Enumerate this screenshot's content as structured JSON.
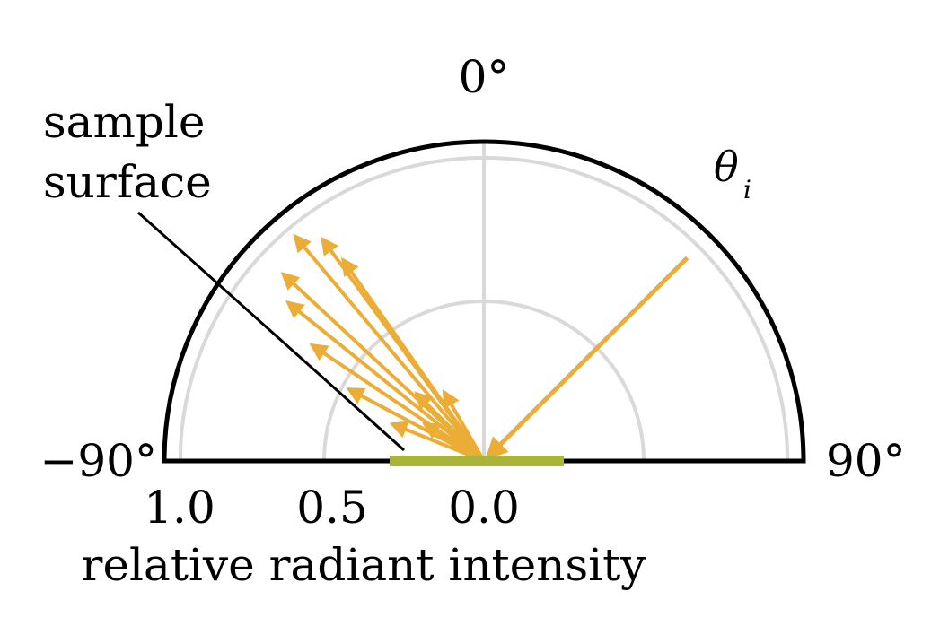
{
  "labels": {
    "top_angle": "0°",
    "left_angle": "−90°",
    "right_angle": "90°",
    "incident_symbol": "θ",
    "incident_subscript": "i",
    "sample_line1": "sample",
    "sample_line2": "surface",
    "x_axis_title": "relative radiant intensity"
  },
  "radial_ticks": [
    "1.0",
    "0.5",
    "0.0"
  ],
  "colors": {
    "arrow": "#EBAD35",
    "sample": "#A9B53A",
    "outline": "#000000",
    "grid": "#D9D9D9"
  },
  "chart_data": {
    "type": "polar-semicircle",
    "angle_range_deg": [
      -90,
      90
    ],
    "radial_range": [
      0,
      1.0
    ],
    "grid_radii": [
      0.5,
      0.95
    ],
    "incident_ray": {
      "angle_deg": 45,
      "length": 0.9
    },
    "reflected_rays": [
      {
        "angle_deg": -40,
        "intensity": 0.92
      },
      {
        "angle_deg": -36,
        "intensity": 0.86
      },
      {
        "angle_deg": -35,
        "intensity": 0.77
      },
      {
        "angle_deg": -47,
        "intensity": 0.86
      },
      {
        "angle_deg": -51,
        "intensity": 0.79
      },
      {
        "angle_deg": -56,
        "intensity": 0.65
      },
      {
        "angle_deg": -62,
        "intensity": 0.48
      },
      {
        "angle_deg": -68,
        "intensity": 0.31
      },
      {
        "angle_deg": -45,
        "intensity": 0.3
      },
      {
        "angle_deg": -58,
        "intensity": 0.22
      },
      {
        "angle_deg": -30,
        "intensity": 0.25
      }
    ]
  }
}
